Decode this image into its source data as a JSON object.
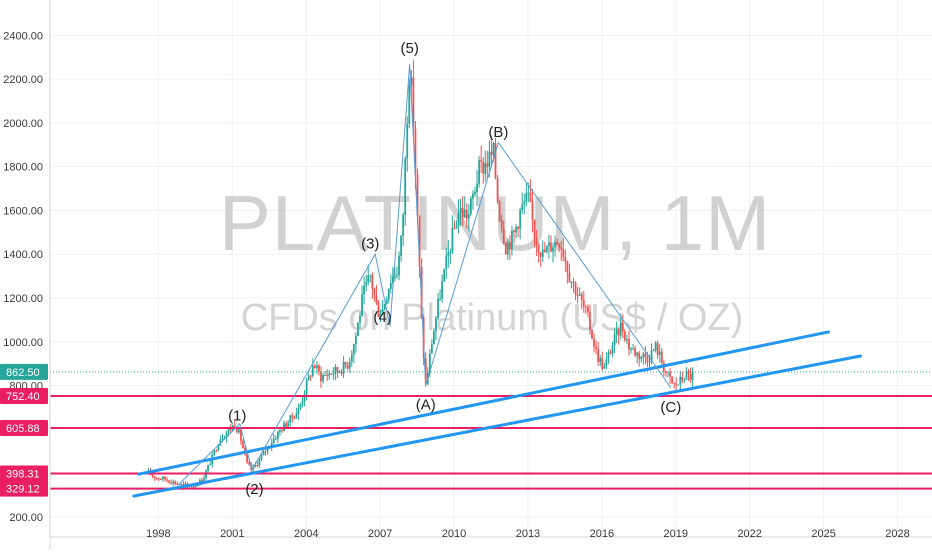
{
  "watermark": {
    "title": "PLATINUM, 1M",
    "subtitle": "CFDs on Platinum (US$ / OZ)"
  },
  "chart_data": {
    "type": "candlestick",
    "interval": "1M",
    "grid": true,
    "x_range": [
      1993.6,
      2029.4
    ],
    "y_range": [
      140,
      2470
    ],
    "y_ticks": [
      200,
      800,
      1000,
      1200,
      1400,
      1600,
      1800,
      2000,
      2200,
      2400
    ],
    "y_tick_labels": [
      "200.00",
      "800.00",
      "1000.00",
      "1200.00",
      "1400.00",
      "1600.00",
      "1800.00",
      "2000.00",
      "2200.00",
      "2400.00"
    ],
    "x_ticks": [
      1998,
      2001,
      2004,
      2007,
      2010,
      2013,
      2016,
      2019,
      2022,
      2025,
      2028
    ],
    "x_tick_labels": [
      "1998",
      "2001",
      "2004",
      "2007",
      "2010",
      "2013",
      "2016",
      "2019",
      "2022",
      "2025",
      "2028"
    ],
    "colors": {
      "up": "#26a69a",
      "down": "#ef5350",
      "support": "#e91e63",
      "trendline": "#2196f3",
      "wave_path": "#5b9bd5",
      "price_line": "#26a69a"
    },
    "current_price": {
      "value": 862.5,
      "label": "862.50"
    },
    "price_path": [
      [
        1997.6,
        400
      ],
      [
        1997.9,
        380
      ],
      [
        1998.2,
        375
      ],
      [
        1998.7,
        355
      ],
      [
        1999.0,
        345
      ],
      [
        1999.4,
        340
      ],
      [
        1999.8,
        370
      ],
      [
        2000.1,
        450
      ],
      [
        2000.5,
        560
      ],
      [
        2000.9,
        600
      ],
      [
        2001.1,
        625
      ],
      [
        2001.3,
        575
      ],
      [
        2001.6,
        440
      ],
      [
        2001.8,
        415
      ],
      [
        2002.1,
        460
      ],
      [
        2002.5,
        530
      ],
      [
        2002.9,
        590
      ],
      [
        2003.3,
        640
      ],
      [
        2003.7,
        690
      ],
      [
        2004.0,
        800
      ],
      [
        2004.3,
        900
      ],
      [
        2004.6,
        840
      ],
      [
        2004.9,
        855
      ],
      [
        2005.3,
        870
      ],
      [
        2005.7,
        900
      ],
      [
        2006.0,
        1020
      ],
      [
        2006.3,
        1210
      ],
      [
        2006.6,
        1300
      ],
      [
        2006.9,
        1140
      ],
      [
        2007.1,
        1150
      ],
      [
        2007.4,
        1280
      ],
      [
        2007.7,
        1330
      ],
      [
        2007.9,
        1500
      ],
      [
        2008.1,
        2050
      ],
      [
        2008.2,
        2270
      ],
      [
        2008.35,
        2000
      ],
      [
        2008.5,
        1600
      ],
      [
        2008.7,
        1050
      ],
      [
        2008.85,
        800
      ],
      [
        2009.1,
        1000
      ],
      [
        2009.4,
        1200
      ],
      [
        2009.8,
        1420
      ],
      [
        2010.2,
        1600
      ],
      [
        2010.6,
        1580
      ],
      [
        2011.0,
        1780
      ],
      [
        2011.3,
        1820
      ],
      [
        2011.6,
        1860
      ],
      [
        2011.8,
        1620
      ],
      [
        2012.1,
        1440
      ],
      [
        2012.4,
        1480
      ],
      [
        2012.7,
        1600
      ],
      [
        2013.0,
        1660
      ],
      [
        2013.3,
        1480
      ],
      [
        2013.6,
        1400
      ],
      [
        2014.0,
        1450
      ],
      [
        2014.3,
        1470
      ],
      [
        2014.7,
        1300
      ],
      [
        2015.1,
        1200
      ],
      [
        2015.4,
        1120
      ],
      [
        2015.8,
        940
      ],
      [
        2016.1,
        880
      ],
      [
        2016.4,
        980
      ],
      [
        2016.8,
        1080
      ],
      [
        2017.1,
        980
      ],
      [
        2017.5,
        940
      ],
      [
        2017.9,
        930
      ],
      [
        2018.2,
        980
      ],
      [
        2018.6,
        860
      ],
      [
        2018.9,
        800
      ],
      [
        2019.1,
        810
      ],
      [
        2019.4,
        850
      ],
      [
        2019.6,
        840
      ],
      [
        2019.75,
        862.5
      ]
    ],
    "horizontal_levels": [
      {
        "value": 752.4,
        "label": "752.40"
      },
      {
        "value": 605.88,
        "label": "605.88"
      },
      {
        "value": 398.31,
        "label": "398.31"
      },
      {
        "value": 329.12,
        "label": "329.12"
      }
    ],
    "trendlines": [
      {
        "x1": 1997.2,
        "y1": 395,
        "x2": 2025.2,
        "y2": 1045
      },
      {
        "x1": 1997.0,
        "y1": 295,
        "x2": 2026.5,
        "y2": 935
      }
    ],
    "wave_path": [
      [
        1998.8,
        345
      ],
      [
        2001.3,
        625
      ],
      [
        2001.8,
        415
      ],
      [
        2006.8,
        1400
      ],
      [
        2007.4,
        1070
      ],
      [
        2008.2,
        2270
      ],
      [
        2008.85,
        800
      ],
      [
        2011.8,
        1910
      ],
      [
        2018.8,
        790
      ]
    ],
    "annotations": [
      {
        "text": "(1)",
        "x": 2001.2,
        "y": 640
      },
      {
        "text": "(2)",
        "x": 2001.9,
        "y": 305
      },
      {
        "text": "(3)",
        "x": 2006.6,
        "y": 1425
      },
      {
        "text": "(4)",
        "x": 2007.1,
        "y": 1090
      },
      {
        "text": "(5)",
        "x": 2008.2,
        "y": 2320
      },
      {
        "text": "(A)",
        "x": 2008.85,
        "y": 690
      },
      {
        "text": "(B)",
        "x": 2011.8,
        "y": 1935
      },
      {
        "text": "(C)",
        "x": 2018.8,
        "y": 680
      }
    ]
  }
}
